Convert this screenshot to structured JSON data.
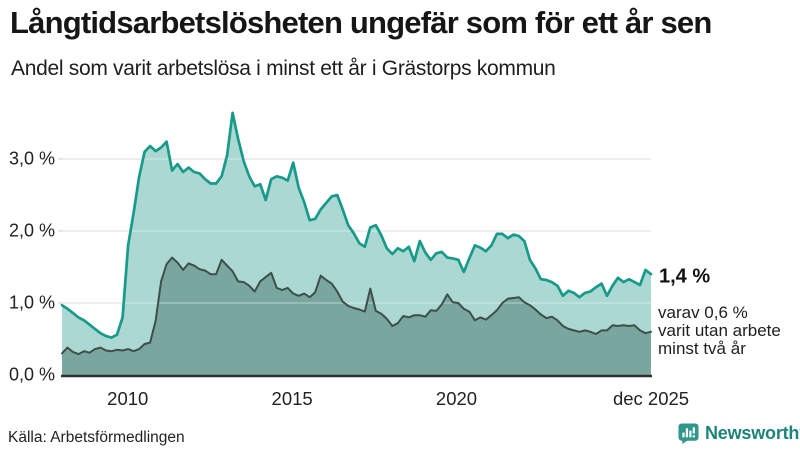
{
  "header": {
    "title": "Långtidsarbetslösheten ungefär som för ett år sen",
    "subtitle": "Andel som varit arbetslösa i minst ett år i Grästorps kommun"
  },
  "annotations": {
    "end_value_label": "1,4 %",
    "end_note_lines": [
      "varav 0,6 %",
      "varit utan arbete",
      "minst två år"
    ]
  },
  "footer": {
    "source": "Källa: Arbetsförmedlingen",
    "brand": "Newsworthy",
    "brand_color": "#1c8478"
  },
  "colors": {
    "background": "#ffffff",
    "series1_line": "#189a8a",
    "series1_fill": "#abd8d2",
    "series2_line": "#3d4f4a",
    "series2_fill": "#79a7a0",
    "gridline": "#d9d9d9",
    "axis_baseline": "#2f2f2f",
    "text": "#161616"
  },
  "chart_data": {
    "type": "area",
    "title": "Långtidsarbetslösheten ungefär som för ett år sen",
    "subtitle": "Andel som varit arbetslösa i minst ett år i Grästorps kommun",
    "unit": "percent",
    "x_start_decimal_year": 2008.0,
    "x_end_decimal_year": 2025.917,
    "sample_interval_months": 2,
    "ylim": [
      0,
      3.7
    ],
    "grid": "horizontal",
    "legend": "none (direct labels at line ends)",
    "yticks": [
      {
        "value": 0,
        "label": "0,0 %"
      },
      {
        "value": 1,
        "label": "1,0 %"
      },
      {
        "value": 2,
        "label": "2,0 %"
      },
      {
        "value": 3,
        "label": "3,0 %"
      }
    ],
    "xticks": [
      {
        "value": 2010,
        "label": "2010"
      },
      {
        "value": 2015,
        "label": "2015"
      },
      {
        "value": 2020,
        "label": "2020"
      },
      {
        "value": 2025.917,
        "label": "dec 2025"
      }
    ],
    "series": [
      {
        "name": "Andel arbetslösa minst ett år",
        "end_label": "1,4 %",
        "end_value": 1.4,
        "line_color": "#189a8a",
        "fill_color": "#abd8d2",
        "values": [
          0.97,
          0.92,
          0.86,
          0.8,
          0.76,
          0.7,
          0.64,
          0.58,
          0.54,
          0.52,
          0.56,
          0.8,
          1.8,
          2.25,
          2.75,
          3.1,
          3.18,
          3.11,
          3.16,
          3.24,
          2.84,
          2.93,
          2.82,
          2.88,
          2.82,
          2.8,
          2.72,
          2.66,
          2.66,
          2.76,
          3.05,
          3.64,
          3.28,
          2.97,
          2.76,
          2.62,
          2.65,
          2.43,
          2.72,
          2.76,
          2.74,
          2.7,
          2.95,
          2.6,
          2.4,
          2.15,
          2.17,
          2.3,
          2.39,
          2.48,
          2.5,
          2.3,
          2.08,
          1.97,
          1.83,
          1.78,
          2.05,
          2.08,
          1.94,
          1.76,
          1.68,
          1.76,
          1.72,
          1.78,
          1.58,
          1.86,
          1.7,
          1.6,
          1.69,
          1.71,
          1.63,
          1.62,
          1.6,
          1.43,
          1.62,
          1.8,
          1.77,
          1.72,
          1.8,
          1.96,
          1.96,
          1.9,
          1.95,
          1.93,
          1.86,
          1.6,
          1.48,
          1.33,
          1.32,
          1.29,
          1.24,
          1.1,
          1.17,
          1.14,
          1.08,
          1.14,
          1.16,
          1.22,
          1.27,
          1.1,
          1.24,
          1.35,
          1.29,
          1.33,
          1.29,
          1.25,
          1.46,
          1.4
        ]
      },
      {
        "name": "Varav utan arbete minst två år",
        "end_label": "varav 0,6 %",
        "end_value": 0.6,
        "line_color": "#3d4f4a",
        "fill_color": "#79a7a0",
        "values": [
          0.3,
          0.38,
          0.32,
          0.29,
          0.33,
          0.31,
          0.36,
          0.38,
          0.34,
          0.33,
          0.35,
          0.34,
          0.36,
          0.33,
          0.36,
          0.43,
          0.45,
          0.75,
          1.3,
          1.54,
          1.63,
          1.56,
          1.46,
          1.55,
          1.52,
          1.47,
          1.45,
          1.4,
          1.4,
          1.6,
          1.52,
          1.44,
          1.3,
          1.29,
          1.24,
          1.16,
          1.3,
          1.36,
          1.42,
          1.21,
          1.18,
          1.21,
          1.13,
          1.1,
          1.13,
          1.08,
          1.15,
          1.38,
          1.32,
          1.27,
          1.16,
          1.02,
          0.96,
          0.93,
          0.91,
          0.88,
          1.2,
          0.89,
          0.85,
          0.78,
          0.68,
          0.72,
          0.82,
          0.8,
          0.83,
          0.83,
          0.81,
          0.9,
          0.89,
          0.98,
          1.12,
          1.01,
          1.0,
          0.92,
          0.88,
          0.76,
          0.8,
          0.77,
          0.83,
          0.9,
          1.0,
          1.06,
          1.07,
          1.08,
          1.01,
          0.97,
          0.91,
          0.84,
          0.79,
          0.81,
          0.76,
          0.68,
          0.64,
          0.62,
          0.6,
          0.62,
          0.6,
          0.57,
          0.62,
          0.62,
          0.69,
          0.68,
          0.69,
          0.68,
          0.69,
          0.62,
          0.58,
          0.6
        ]
      }
    ]
  }
}
